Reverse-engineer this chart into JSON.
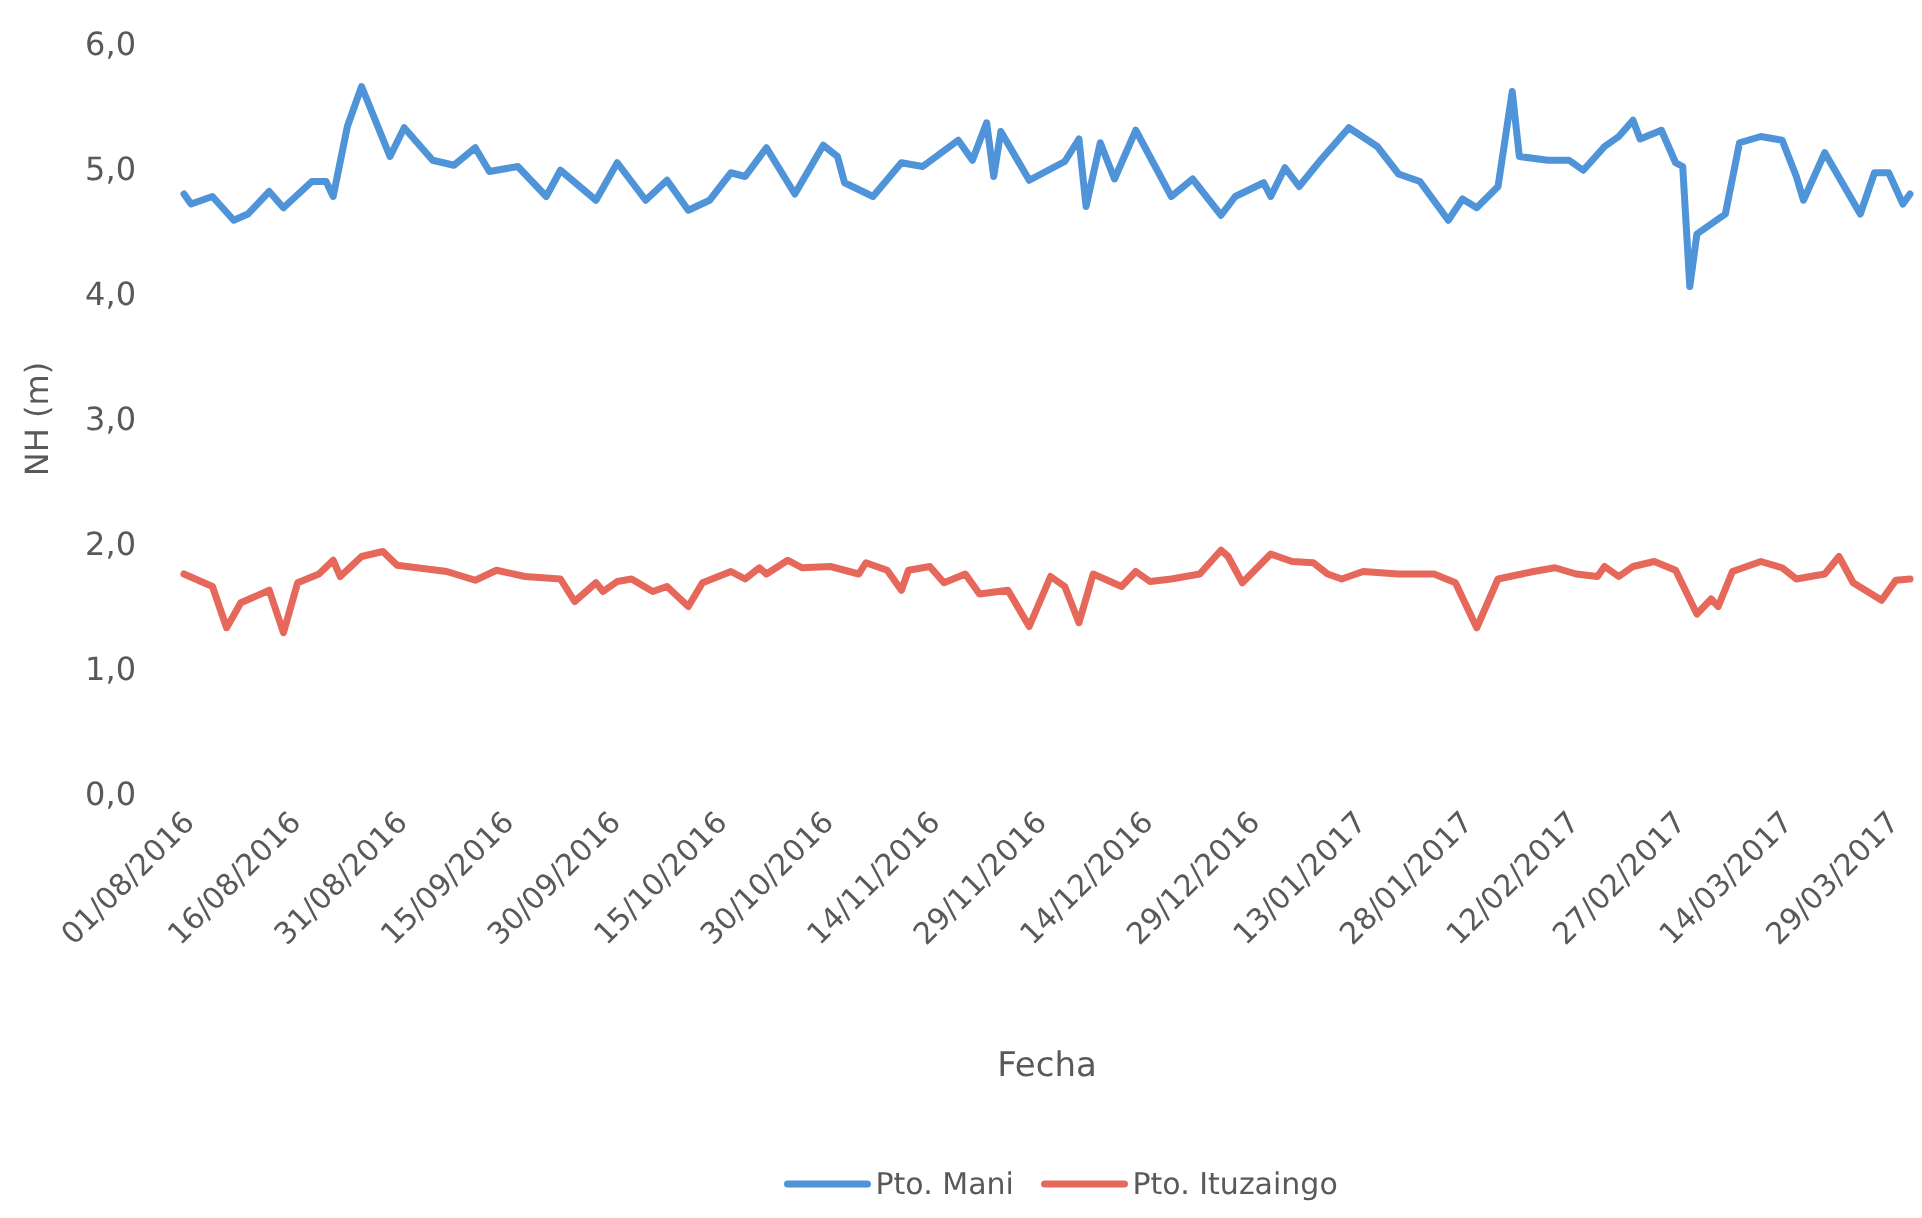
{
  "chart_data": {
    "type": "line",
    "xlabel": "Fecha",
    "ylabel": "NH (m)",
    "grid": false,
    "legend": "bottom",
    "marker": "none",
    "line_style": "solid",
    "xlim": [
      "2016-08-01",
      "2017-04-01"
    ],
    "xticks": [
      {
        "value": "2016-08-01",
        "label": "01/08/2016"
      },
      {
        "value": "2016-08-16",
        "label": "16/08/2016"
      },
      {
        "value": "2016-08-31",
        "label": "31/08/2016"
      },
      {
        "value": "2016-09-15",
        "label": "15/09/2016"
      },
      {
        "value": "2016-09-30",
        "label": "30/09/2016"
      },
      {
        "value": "2016-10-15",
        "label": "15/10/2016"
      },
      {
        "value": "2016-10-30",
        "label": "30/10/2016"
      },
      {
        "value": "2016-11-14",
        "label": "14/11/2016"
      },
      {
        "value": "2016-11-29",
        "label": "29/11/2016"
      },
      {
        "value": "2016-12-14",
        "label": "14/12/2016"
      },
      {
        "value": "2016-12-29",
        "label": "29/12/2016"
      },
      {
        "value": "2017-01-13",
        "label": "13/01/2017"
      },
      {
        "value": "2017-01-28",
        "label": "28/01/2017"
      },
      {
        "value": "2017-02-12",
        "label": "12/02/2017"
      },
      {
        "value": "2017-02-27",
        "label": "27/02/2017"
      },
      {
        "value": "2017-03-14",
        "label": "14/03/2017"
      },
      {
        "value": "2017-03-29",
        "label": "29/03/2017"
      }
    ],
    "ylim": [
      0,
      6
    ],
    "yticks": [
      {
        "value": 0,
        "label": "0,0"
      },
      {
        "value": 1,
        "label": "1,0"
      },
      {
        "value": 2,
        "label": "2,0"
      },
      {
        "value": 3,
        "label": "3,0"
      },
      {
        "value": 4,
        "label": "4,0"
      },
      {
        "value": 5,
        "label": "5,0"
      },
      {
        "value": 6,
        "label": "6,0"
      }
    ],
    "series": [
      {
        "name": "Pto. Mani",
        "color": "#4f94d8",
        "x": [
          "2016-08-01",
          "2016-08-02",
          "2016-08-05",
          "2016-08-08",
          "2016-08-10",
          "2016-08-13",
          "2016-08-15",
          "2016-08-19",
          "2016-08-21",
          "2016-08-22",
          "2016-08-24",
          "2016-08-26",
          "2016-08-30",
          "2016-09-01",
          "2016-09-05",
          "2016-09-08",
          "2016-09-11",
          "2016-09-13",
          "2016-09-17",
          "2016-09-21",
          "2016-09-23",
          "2016-09-28",
          "2016-10-01",
          "2016-10-05",
          "2016-10-08",
          "2016-10-11",
          "2016-10-14",
          "2016-10-17",
          "2016-10-19",
          "2016-10-22",
          "2016-10-26",
          "2016-10-30",
          "2016-11-01",
          "2016-11-02",
          "2016-11-06",
          "2016-11-10",
          "2016-11-13",
          "2016-11-18",
          "2016-11-20",
          "2016-11-22",
          "2016-11-23",
          "2016-11-24",
          "2016-11-28",
          "2016-12-03",
          "2016-12-05",
          "2016-12-06",
          "2016-12-08",
          "2016-12-10",
          "2016-12-13",
          "2016-12-18",
          "2016-12-21",
          "2016-12-25",
          "2016-12-27",
          "2016-12-31",
          "2017-01-01",
          "2017-01-03",
          "2017-01-05",
          "2017-01-08",
          "2017-01-12",
          "2017-01-16",
          "2017-01-19",
          "2017-01-22",
          "2017-01-26",
          "2017-01-28",
          "2017-01-30",
          "2017-02-02",
          "2017-02-04",
          "2017-02-05",
          "2017-02-09",
          "2017-02-12",
          "2017-02-14",
          "2017-02-17",
          "2017-02-19",
          "2017-02-21",
          "2017-02-22",
          "2017-02-25",
          "2017-02-27",
          "2017-02-28",
          "2017-03-01",
          "2017-03-02",
          "2017-03-06",
          "2017-03-08",
          "2017-03-11",
          "2017-03-14",
          "2017-03-16",
          "2017-03-17",
          "2017-03-20",
          "2017-03-25",
          "2017-03-27",
          "2017-03-29",
          "2017-03-31",
          "2017-04-01"
        ],
        "values": [
          4.8,
          4.72,
          4.78,
          4.59,
          4.64,
          4.82,
          4.69,
          4.9,
          4.9,
          4.78,
          5.34,
          5.66,
          5.1,
          5.33,
          5.07,
          5.03,
          5.17,
          4.98,
          5.02,
          4.78,
          4.99,
          4.75,
          5.05,
          4.75,
          4.91,
          4.67,
          4.75,
          4.97,
          4.94,
          5.17,
          4.8,
          5.19,
          5.1,
          4.89,
          4.78,
          5.05,
          5.02,
          5.23,
          5.07,
          5.37,
          4.94,
          5.3,
          4.91,
          5.06,
          5.24,
          4.7,
          5.21,
          4.92,
          5.31,
          4.78,
          4.92,
          4.63,
          4.78,
          4.89,
          4.78,
          5.01,
          4.86,
          5.07,
          5.33,
          5.18,
          4.96,
          4.9,
          4.59,
          4.76,
          4.69,
          4.86,
          5.62,
          5.1,
          5.07,
          5.07,
          4.99,
          5.18,
          5.26,
          5.39,
          5.24,
          5.31,
          5.05,
          5.02,
          4.06,
          4.48,
          4.64,
          5.21,
          5.26,
          5.23,
          4.94,
          4.75,
          5.13,
          4.64,
          4.97,
          4.97,
          4.72,
          4.8
        ]
      },
      {
        "name": "Pto. Ituzaingo",
        "color": "#e5685a",
        "x": [
          "2016-08-01",
          "2016-08-05",
          "2016-08-07",
          "2016-08-09",
          "2016-08-13",
          "2016-08-15",
          "2016-08-17",
          "2016-08-20",
          "2016-08-22",
          "2016-08-23",
          "2016-08-26",
          "2016-08-29",
          "2016-08-31",
          "2016-09-07",
          "2016-09-11",
          "2016-09-14",
          "2016-09-18",
          "2016-09-23",
          "2016-09-25",
          "2016-09-28",
          "2016-09-29",
          "2016-10-01",
          "2016-10-03",
          "2016-10-06",
          "2016-10-08",
          "2016-10-11",
          "2016-10-13",
          "2016-10-17",
          "2016-10-19",
          "2016-10-21",
          "2016-10-22",
          "2016-10-25",
          "2016-10-27",
          "2016-10-31",
          "2016-11-04",
          "2016-11-05",
          "2016-11-08",
          "2016-11-10",
          "2016-11-11",
          "2016-11-14",
          "2016-11-16",
          "2016-11-19",
          "2016-11-21",
          "2016-11-25",
          "2016-11-28",
          "2016-12-01",
          "2016-12-03",
          "2016-12-05",
          "2016-12-07",
          "2016-12-11",
          "2016-12-13",
          "2016-12-15",
          "2016-12-18",
          "2016-12-22",
          "2016-12-25",
          "2016-12-26",
          "2016-12-28",
          "2017-01-01",
          "2017-01-04",
          "2017-01-07",
          "2017-01-09",
          "2017-01-11",
          "2017-01-14",
          "2017-01-19",
          "2017-01-24",
          "2017-01-27",
          "2017-01-30",
          "2017-02-02",
          "2017-02-07",
          "2017-02-10",
          "2017-02-13",
          "2017-02-16",
          "2017-02-17",
          "2017-02-19",
          "2017-02-21",
          "2017-02-24",
          "2017-02-27",
          "2017-03-02",
          "2017-03-04",
          "2017-03-05",
          "2017-03-07",
          "2017-03-11",
          "2017-03-14",
          "2017-03-16",
          "2017-03-20",
          "2017-03-22",
          "2017-03-24",
          "2017-03-28",
          "2017-03-30",
          "2017-04-01"
        ],
        "values": [
          1.76,
          1.66,
          1.33,
          1.53,
          1.63,
          1.29,
          1.69,
          1.76,
          1.87,
          1.74,
          1.9,
          1.94,
          1.83,
          1.78,
          1.71,
          1.79,
          1.74,
          1.72,
          1.54,
          1.69,
          1.62,
          1.7,
          1.72,
          1.62,
          1.66,
          1.5,
          1.69,
          1.78,
          1.72,
          1.81,
          1.76,
          1.87,
          1.81,
          1.82,
          1.76,
          1.85,
          1.79,
          1.63,
          1.79,
          1.82,
          1.69,
          1.76,
          1.6,
          1.63,
          1.34,
          1.74,
          1.66,
          1.37,
          1.76,
          1.66,
          1.78,
          1.7,
          1.72,
          1.76,
          1.95,
          1.9,
          1.69,
          1.92,
          1.86,
          1.85,
          1.76,
          1.72,
          1.78,
          1.76,
          1.76,
          1.69,
          1.33,
          1.72,
          1.78,
          1.81,
          1.76,
          1.74,
          1.82,
          1.74,
          1.82,
          1.86,
          1.79,
          1.44,
          1.56,
          1.5,
          1.78,
          1.86,
          1.81,
          1.72,
          1.76,
          1.9,
          1.69,
          1.55,
          1.71,
          1.72
        ]
      }
    ]
  }
}
